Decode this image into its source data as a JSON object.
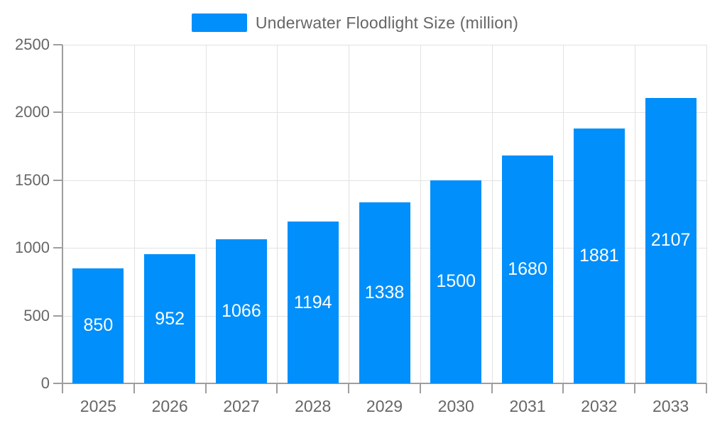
{
  "legend": {
    "label": "Underwater Floodlight Size (million)",
    "swatch_color": "#008FFB"
  },
  "chart_data": {
    "type": "bar",
    "title": "Underwater Floodlight Size (million)",
    "categories": [
      "2025",
      "2026",
      "2027",
      "2028",
      "2029",
      "2030",
      "2031",
      "2032",
      "2033"
    ],
    "values": [
      850,
      952,
      1066,
      1194,
      1338,
      1500,
      1680,
      1881,
      2107
    ],
    "xlabel": "",
    "ylabel": "",
    "ylim": [
      0,
      2500
    ],
    "ytick_step": 500,
    "yticks": [
      "0",
      "500",
      "1000",
      "1500",
      "2000",
      "2500"
    ],
    "grid": true,
    "legend_position": "top",
    "bar_color": "#008FFB",
    "bar_label_color": "#ffffff"
  },
  "colors": {
    "bar": "#008FFB",
    "grid": "#e2e2e2",
    "axis": "#9e9e9e",
    "tick_text": "#666666",
    "background": "#ffffff"
  }
}
